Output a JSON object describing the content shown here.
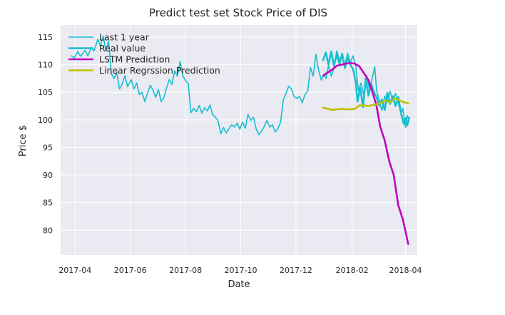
{
  "chart_data": {
    "type": "line",
    "title": "Predict test set Stock Price of DIS",
    "xlabel": "Date",
    "ylabel": "Price $",
    "xlim": [
      "2017-03-16",
      "2018-04-14"
    ],
    "ylim": [
      75.5,
      117.2
    ],
    "x_ticks": [
      "2017-04",
      "2017-06",
      "2017-08",
      "2017-10",
      "2017-12",
      "2018-02",
      "2018-04"
    ],
    "y_ticks": [
      80,
      85,
      90,
      95,
      100,
      105,
      110,
      115
    ],
    "grid": true,
    "legend_position": "top-left",
    "series": [
      {
        "name": "Last 1 year",
        "color": "#17becf",
        "points": [
          [
            "2017-03-28",
            111.6
          ],
          [
            "2017-03-31",
            111.2
          ],
          [
            "2017-04-04",
            112.4
          ],
          [
            "2017-04-07",
            111.5
          ],
          [
            "2017-04-12",
            112.6
          ],
          [
            "2017-04-15",
            111.6
          ],
          [
            "2017-04-19",
            113.1
          ],
          [
            "2017-04-22",
            112.5
          ],
          [
            "2017-04-26",
            114.6
          ],
          [
            "2017-04-29",
            113.4
          ],
          [
            "2017-05-02",
            115.2
          ],
          [
            "2017-05-05",
            112.6
          ],
          [
            "2017-05-08",
            114.3
          ],
          [
            "2017-05-11",
            108.4
          ],
          [
            "2017-05-14",
            107.5
          ],
          [
            "2017-05-17",
            108.6
          ],
          [
            "2017-05-20",
            105.6
          ],
          [
            "2017-05-23",
            106.5
          ],
          [
            "2017-05-26",
            108.0
          ],
          [
            "2017-05-29",
            106.0
          ],
          [
            "2017-06-02",
            107.3
          ],
          [
            "2017-06-05",
            105.6
          ],
          [
            "2017-06-08",
            106.7
          ],
          [
            "2017-06-11",
            104.6
          ],
          [
            "2017-06-14",
            105.0
          ],
          [
            "2017-06-17",
            103.3
          ],
          [
            "2017-06-20",
            104.8
          ],
          [
            "2017-06-23",
            106.3
          ],
          [
            "2017-06-26",
            105.4
          ],
          [
            "2017-06-29",
            104.1
          ],
          [
            "2017-07-02",
            105.5
          ],
          [
            "2017-07-05",
            103.3
          ],
          [
            "2017-07-08",
            104.0
          ],
          [
            "2017-07-11",
            105.8
          ],
          [
            "2017-07-14",
            107.3
          ],
          [
            "2017-07-17",
            106.4
          ],
          [
            "2017-07-20",
            108.9
          ],
          [
            "2017-07-23",
            107.9
          ],
          [
            "2017-07-26",
            110.6
          ],
          [
            "2017-07-29",
            108.0
          ],
          [
            "2017-08-01",
            107.1
          ],
          [
            "2017-08-04",
            106.6
          ],
          [
            "2017-08-07",
            101.3
          ],
          [
            "2017-08-10",
            102.1
          ],
          [
            "2017-08-13",
            101.5
          ],
          [
            "2017-08-16",
            102.6
          ],
          [
            "2017-08-19",
            101.2
          ],
          [
            "2017-08-22",
            102.2
          ],
          [
            "2017-08-25",
            101.6
          ],
          [
            "2017-08-28",
            102.7
          ],
          [
            "2017-08-31",
            100.9
          ],
          [
            "2017-09-03",
            100.5
          ],
          [
            "2017-09-06",
            99.8
          ],
          [
            "2017-09-09",
            97.5
          ],
          [
            "2017-09-12",
            98.6
          ],
          [
            "2017-09-15",
            97.6
          ],
          [
            "2017-09-18",
            98.4
          ],
          [
            "2017-09-21",
            99.1
          ],
          [
            "2017-09-24",
            98.7
          ],
          [
            "2017-09-27",
            99.4
          ],
          [
            "2017-09-30",
            98.3
          ],
          [
            "2017-10-03",
            99.6
          ],
          [
            "2017-10-06",
            98.5
          ],
          [
            "2017-10-09",
            101.0
          ],
          [
            "2017-10-12",
            99.9
          ],
          [
            "2017-10-15",
            100.5
          ],
          [
            "2017-10-18",
            98.4
          ],
          [
            "2017-10-21",
            97.3
          ],
          [
            "2017-10-24",
            98.0
          ],
          [
            "2017-10-27",
            98.8
          ],
          [
            "2017-10-30",
            99.9
          ],
          [
            "2017-11-02",
            98.7
          ],
          [
            "2017-11-05",
            99.1
          ],
          [
            "2017-11-08",
            97.8
          ],
          [
            "2017-11-11",
            98.4
          ],
          [
            "2017-11-14",
            99.6
          ],
          [
            "2017-11-17",
            103.6
          ],
          [
            "2017-11-20",
            104.8
          ],
          [
            "2017-11-23",
            106.1
          ],
          [
            "2017-11-26",
            105.6
          ],
          [
            "2017-11-29",
            104.2
          ],
          [
            "2017-12-02",
            103.9
          ],
          [
            "2017-12-05",
            104.2
          ],
          [
            "2017-12-08",
            103.1
          ],
          [
            "2017-12-11",
            104.6
          ],
          [
            "2017-12-14",
            105.2
          ],
          [
            "2017-12-17",
            109.5
          ],
          [
            "2017-12-20",
            107.9
          ],
          [
            "2017-12-23",
            111.9
          ],
          [
            "2017-12-26",
            109.0
          ],
          [
            "2017-12-29",
            107.2
          ],
          [
            "2018-01-01",
            108.3
          ],
          [
            "2018-01-03",
            107.5
          ],
          [
            "2018-01-06",
            109.8
          ],
          [
            "2018-01-09",
            107.9
          ],
          [
            "2018-01-12",
            109.4
          ],
          [
            "2018-01-15",
            112.5
          ],
          [
            "2018-01-18",
            110.9
          ],
          [
            "2018-01-21",
            111.6
          ],
          [
            "2018-01-24",
            109.9
          ],
          [
            "2018-01-27",
            112.1
          ],
          [
            "2018-01-30",
            110.4
          ],
          [
            "2018-02-02",
            111.6
          ],
          [
            "2018-02-05",
            109.8
          ],
          [
            "2018-02-08",
            105.3
          ],
          [
            "2018-02-11",
            106.7
          ],
          [
            "2018-02-14",
            104.3
          ],
          [
            "2018-02-17",
            108.1
          ],
          [
            "2018-02-20",
            105.6
          ],
          [
            "2018-02-23",
            107.4
          ],
          [
            "2018-02-26",
            109.6
          ],
          [
            "2018-02-28",
            105.5
          ],
          [
            "2018-03-03",
            103.4
          ],
          [
            "2018-03-06",
            101.7
          ],
          [
            "2018-03-09",
            104.3
          ],
          [
            "2018-03-12",
            103.2
          ],
          [
            "2018-03-15",
            105.2
          ],
          [
            "2018-03-18",
            103.4
          ],
          [
            "2018-03-21",
            104.8
          ],
          [
            "2018-03-24",
            103.0
          ],
          [
            "2018-03-27",
            101.1
          ],
          [
            "2018-03-29",
            102.1
          ],
          [
            "2018-04-01",
            98.6
          ],
          [
            "2018-04-03",
            100.8
          ],
          [
            "2018-04-05",
            99.8
          ]
        ]
      },
      {
        "name": "Real value",
        "color": "#17becf",
        "points": [
          [
            "2017-12-31",
            110.8
          ],
          [
            "2018-01-03",
            112.2
          ],
          [
            "2018-01-06",
            110.0
          ],
          [
            "2018-01-09",
            112.4
          ],
          [
            "2018-01-12",
            109.8
          ],
          [
            "2018-01-15",
            111.9
          ],
          [
            "2018-01-18",
            110.2
          ],
          [
            "2018-01-21",
            112.0
          ],
          [
            "2018-01-24",
            109.4
          ],
          [
            "2018-01-27",
            111.3
          ],
          [
            "2018-01-30",
            110.0
          ],
          [
            "2018-02-02",
            109.2
          ],
          [
            "2018-02-05",
            107.0
          ],
          [
            "2018-02-07",
            103.3
          ],
          [
            "2018-02-10",
            105.8
          ],
          [
            "2018-02-13",
            102.3
          ],
          [
            "2018-02-16",
            107.5
          ],
          [
            "2018-02-19",
            104.4
          ],
          [
            "2018-02-22",
            106.6
          ],
          [
            "2018-02-25",
            105.1
          ],
          [
            "2018-02-28",
            104.1
          ],
          [
            "2018-03-03",
            102.6
          ],
          [
            "2018-03-06",
            103.7
          ],
          [
            "2018-03-09",
            101.8
          ],
          [
            "2018-03-12",
            104.9
          ],
          [
            "2018-03-15",
            102.9
          ],
          [
            "2018-03-18",
            104.3
          ],
          [
            "2018-03-21",
            102.5
          ],
          [
            "2018-03-24",
            104.1
          ],
          [
            "2018-03-27",
            101.2
          ],
          [
            "2018-03-30",
            99.3
          ],
          [
            "2018-04-01",
            100.3
          ],
          [
            "2018-04-03",
            99.0
          ],
          [
            "2018-04-05",
            100.4
          ]
        ]
      },
      {
        "name": "LSTM Prediction",
        "color": "#bf00bf",
        "points": [
          [
            "2017-12-31",
            108.0
          ],
          [
            "2018-01-05",
            108.6
          ],
          [
            "2018-01-10",
            109.1
          ],
          [
            "2018-01-15",
            109.8
          ],
          [
            "2018-01-20",
            110.0
          ],
          [
            "2018-01-25",
            110.2
          ],
          [
            "2018-01-30",
            110.3
          ],
          [
            "2018-02-04",
            110.2
          ],
          [
            "2018-02-09",
            109.7
          ],
          [
            "2018-02-14",
            108.5
          ],
          [
            "2018-02-19",
            107.2
          ],
          [
            "2018-02-24",
            104.8
          ],
          [
            "2018-02-28",
            102.5
          ],
          [
            "2018-03-04",
            98.8
          ],
          [
            "2018-03-09",
            96.3
          ],
          [
            "2018-03-14",
            92.5
          ],
          [
            "2018-03-19",
            90.0
          ],
          [
            "2018-03-24",
            84.5
          ],
          [
            "2018-03-29",
            82.0
          ],
          [
            "2018-04-01",
            79.8
          ],
          [
            "2018-04-04",
            77.5
          ]
        ]
      },
      {
        "name": "Linear Regrssion Prediction",
        "color": "#bfbf00",
        "points": [
          [
            "2017-12-31",
            102.2
          ],
          [
            "2018-01-05",
            102.0
          ],
          [
            "2018-01-10",
            101.8
          ],
          [
            "2018-01-15",
            101.9
          ],
          [
            "2018-01-20",
            102.0
          ],
          [
            "2018-01-25",
            101.9
          ],
          [
            "2018-01-30",
            101.9
          ],
          [
            "2018-02-04",
            102.0
          ],
          [
            "2018-02-09",
            102.6
          ],
          [
            "2018-02-14",
            102.6
          ],
          [
            "2018-02-19",
            102.5
          ],
          [
            "2018-02-24",
            102.7
          ],
          [
            "2018-02-28",
            102.8
          ],
          [
            "2018-03-05",
            103.1
          ],
          [
            "2018-03-10",
            103.5
          ],
          [
            "2018-03-15",
            103.2
          ],
          [
            "2018-03-20",
            103.9
          ],
          [
            "2018-03-25",
            103.6
          ],
          [
            "2018-03-30",
            103.2
          ],
          [
            "2018-04-04",
            103.0
          ]
        ]
      }
    ]
  }
}
